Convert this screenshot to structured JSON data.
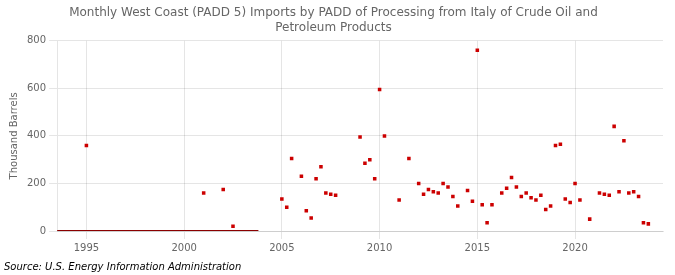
{
  "chart_data": {
    "type": "scatter",
    "title": "Monthly West Coast (PADD 5) Imports by PADD of Processing from Italy of Crude Oil and\nPetroleum Products",
    "y_label": "Thousand Barrels",
    "source": "Source: U.S. Energy Information Administration",
    "xlim": [
      1993.5,
      2024.5
    ],
    "xticks": [
      1995,
      2000,
      2005,
      2010,
      2015,
      2020
    ],
    "ylim": [
      0,
      800
    ],
    "yticks": [
      0,
      200,
      400,
      600,
      800
    ],
    "grid": true,
    "series": [
      {
        "type": "line",
        "color": "#8b0000",
        "line_style": "solid",
        "x": [
          1993.5,
          2003.8
        ],
        "values": [
          0,
          0
        ]
      },
      {
        "type": "scatter",
        "color": "#cc0000",
        "marker": "square",
        "x": [
          1995.0,
          2001.0,
          2002.0,
          2002.5,
          2005.0,
          2005.25,
          2005.5,
          2006.0,
          2006.25,
          2006.5,
          2006.75,
          2007.0,
          2007.25,
          2007.5,
          2007.75,
          2009.0,
          2009.25,
          2009.5,
          2009.75,
          2010.0,
          2010.25,
          2011.0,
          2011.5,
          2012.0,
          2012.25,
          2012.5,
          2012.75,
          2013.0,
          2013.25,
          2013.5,
          2013.75,
          2014.0,
          2014.5,
          2014.75,
          2015.0,
          2015.25,
          2015.5,
          2015.75,
          2016.25,
          2016.5,
          2016.75,
          2017.0,
          2017.25,
          2017.5,
          2017.75,
          2018.0,
          2018.25,
          2018.5,
          2018.75,
          2019.0,
          2019.25,
          2019.5,
          2019.75,
          2020.0,
          2020.25,
          2020.75,
          2021.25,
          2021.5,
          2021.75,
          2022.0,
          2022.25,
          2022.5,
          2022.75,
          2023.0,
          2023.25,
          2023.5,
          2023.75
        ],
        "values": [
          360,
          160,
          175,
          20,
          135,
          100,
          305,
          230,
          85,
          55,
          220,
          270,
          160,
          155,
          150,
          395,
          285,
          300,
          220,
          595,
          400,
          130,
          305,
          200,
          155,
          175,
          165,
          160,
          200,
          185,
          145,
          105,
          170,
          125,
          760,
          110,
          35,
          110,
          160,
          180,
          225,
          185,
          145,
          160,
          140,
          130,
          150,
          90,
          105,
          360,
          365,
          135,
          120,
          200,
          130,
          50,
          160,
          155,
          150,
          440,
          165,
          380,
          160,
          165,
          145,
          35,
          30
        ]
      }
    ]
  }
}
